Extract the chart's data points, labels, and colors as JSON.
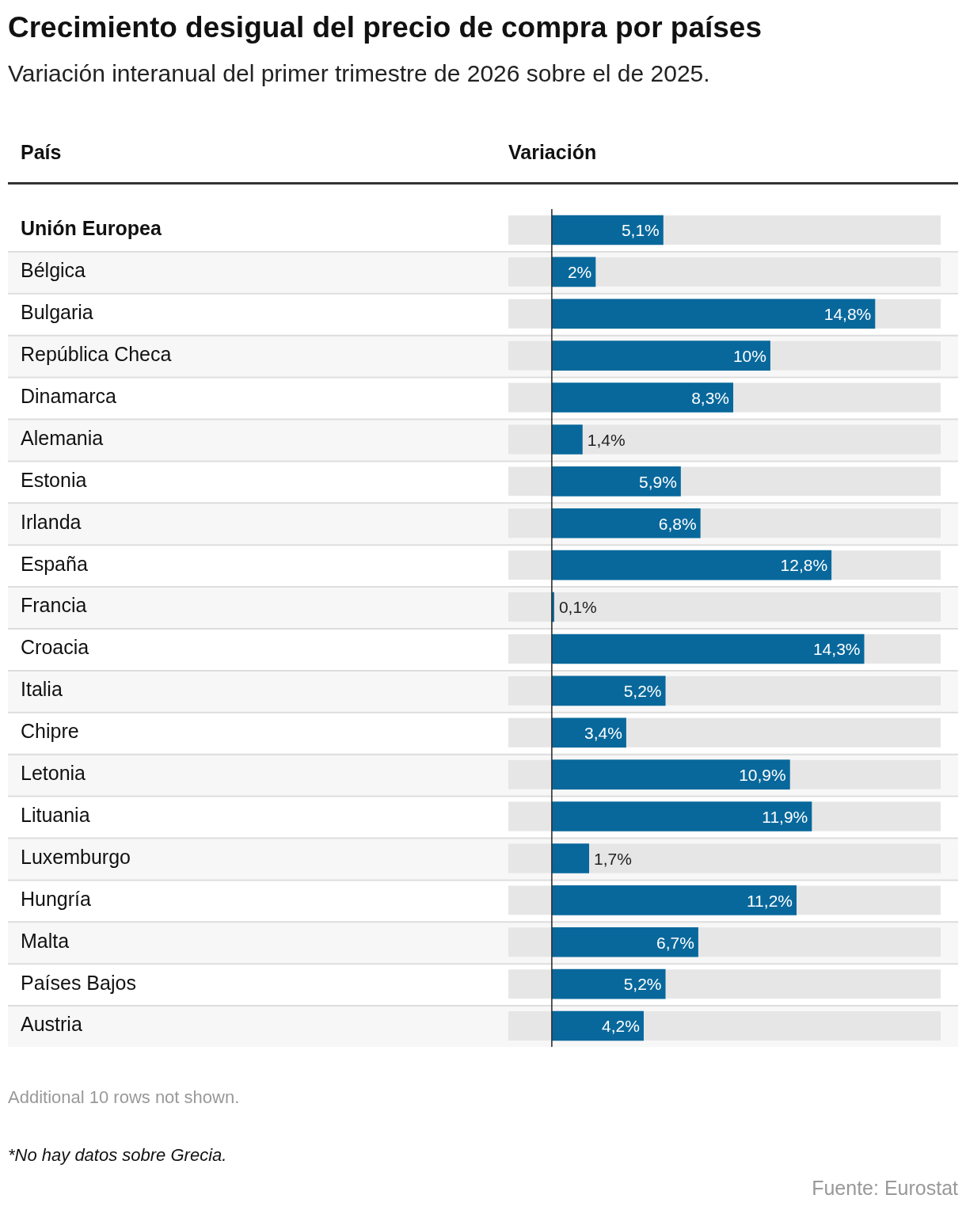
{
  "chart_data": {
    "type": "bar",
    "orientation": "horizontal",
    "title": "Crecimiento desigual del precio de compra por países",
    "subtitle": "Variación interanual del primer trimestre de 2026 sobre el de 2025.",
    "categories": [
      "Unión Europea",
      "Bélgica",
      "Bulgaria",
      "República Checa",
      "Dinamarca",
      "Alemania",
      "Estonia",
      "Irlanda",
      "España",
      "Francia",
      "Croacia",
      "Italia",
      "Chipre",
      "Letonia",
      "Lituania",
      "Luxemburgo",
      "Hungría",
      "Malta",
      "Países Bajos",
      "Austria"
    ],
    "values": [
      5.1,
      2,
      14.8,
      10,
      8.3,
      1.4,
      5.9,
      6.8,
      12.8,
      0.1,
      14.3,
      5.2,
      3.4,
      10.9,
      11.9,
      1.7,
      11.2,
      6.7,
      5.2,
      4.2
    ],
    "value_labels": [
      "5,1%",
      "2%",
      "14,8%",
      "10%",
      "8,3%",
      "1,4%",
      "5,9%",
      "6,8%",
      "12,8%",
      "0,1%",
      "14,3%",
      "5,2%",
      "3,4%",
      "10,9%",
      "11,9%",
      "1,7%",
      "11,2%",
      "6,7%",
      "5,2%",
      "4,2%"
    ],
    "color": "#08689c",
    "xlim": [
      -2,
      17.8
    ],
    "legend": false,
    "annotations": [
      "País",
      "Variación",
      "Additional 10 rows not shown.",
      "*No hay datos sobre Grecia.",
      "Fuente: Eurostat"
    ]
  }
}
